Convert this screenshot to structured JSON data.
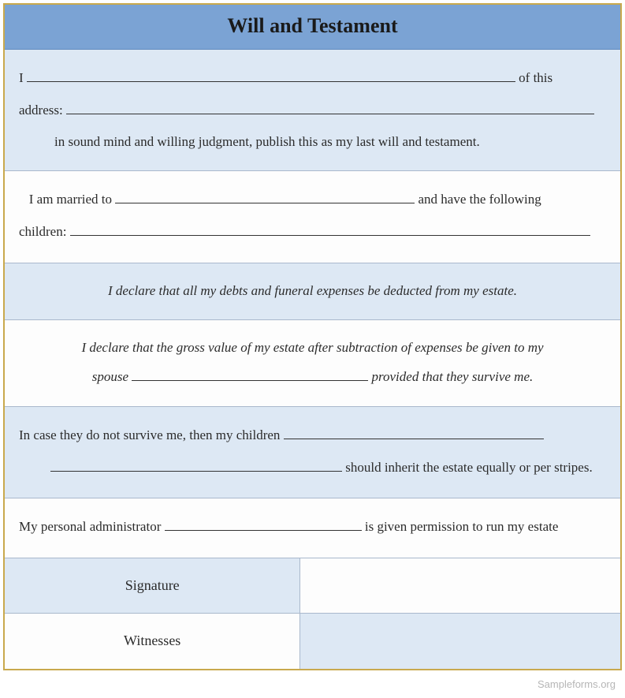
{
  "colors": {
    "header_bg": "#7ba3d4",
    "section_light_bg": "#dde8f4",
    "section_white_bg": "#fdfdfd",
    "outer_border": "#c9a94d",
    "inner_border": "#a9b8cc",
    "text": "#2b2b2b",
    "watermark": "#b6b6b6"
  },
  "typography": {
    "family": "Times New Roman",
    "title_size_pt": 20,
    "body_size_pt": 13
  },
  "header": {
    "title": "Will and Testament"
  },
  "section1": {
    "pre_name": "I",
    "post_name": "of this",
    "address_label": "address:",
    "statement": "in sound mind and willing judgment, publish this as my last will and testament."
  },
  "section2": {
    "pre_spouse": "I am married to",
    "post_spouse": "and have the following",
    "children_label": "children:"
  },
  "section3": {
    "text": "I declare that all my debts and funeral expenses be deducted from my estate."
  },
  "section4": {
    "line1": "I declare that the gross value of my estate after subtraction of expenses be given to my",
    "pre_blank": "spouse",
    "post_blank": "provided that they survive me."
  },
  "section5": {
    "pre_blank": "In case they do not survive me, then my children",
    "post_blank": "should inherit the estate equally or per stripes."
  },
  "section6": {
    "pre_blank": "My personal administrator",
    "post_blank": "is given permission to run my estate"
  },
  "signature": {
    "signature_label": "Signature",
    "witnesses_label": "Witnesses"
  },
  "watermark": "Sampleforms.org"
}
